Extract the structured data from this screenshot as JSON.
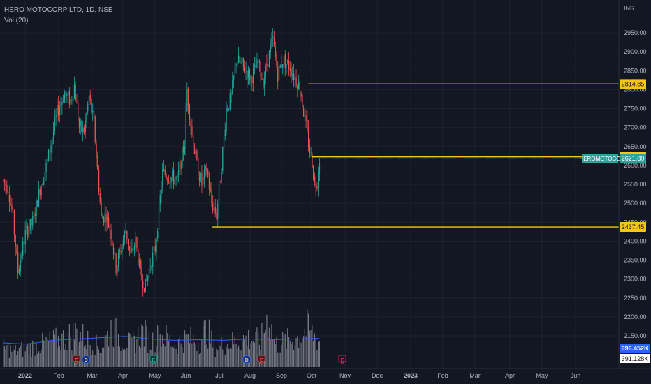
{
  "header": {
    "symbol_title": "HERO MOTOCORP LTD, 1D, NSE",
    "volume_label": "Vol (20)",
    "currency": "INR"
  },
  "colors": {
    "background": "#131722",
    "up": "#26a69a",
    "down": "#ef5350",
    "level_line": "#f5c518",
    "volume_bar": "#9598a1",
    "volume_ma": "#2962ff",
    "grid": "#1e222d"
  },
  "chart_data": {
    "type": "candlestick",
    "ylim": [
      2115,
      2960
    ],
    "y_ticks": [
      "2950.00",
      "2900.00",
      "2850.00",
      "2800.00",
      "2750.00",
      "2700.00",
      "2650.00",
      "2600.00",
      "2550.00",
      "2500.00",
      "2450.00",
      "2400.00",
      "2350.00",
      "2300.00",
      "2250.00",
      "2200.00",
      "2150.00"
    ],
    "x_ticks": [
      "2022",
      "Feb",
      "Mar",
      "Apr",
      "May",
      "Jun",
      "Jul",
      "Aug",
      "Sep",
      "Oct",
      "Nov",
      "Dec",
      "2023",
      "Feb",
      "Mar",
      "Apr",
      "May",
      "Jun"
    ],
    "price_path": [
      [
        0,
        2560
      ],
      [
        4,
        2540
      ],
      [
        8,
        2460
      ],
      [
        12,
        2320
      ],
      [
        18,
        2420
      ],
      [
        24,
        2450
      ],
      [
        30,
        2540
      ],
      [
        36,
        2610
      ],
      [
        44,
        2740
      ],
      [
        50,
        2790
      ],
      [
        55,
        2770
      ],
      [
        58,
        2810
      ],
      [
        62,
        2700
      ],
      [
        66,
        2690
      ],
      [
        70,
        2780
      ],
      [
        74,
        2710
      ],
      [
        80,
        2460
      ],
      [
        84,
        2470
      ],
      [
        88,
        2420
      ],
      [
        92,
        2330
      ],
      [
        96,
        2380
      ],
      [
        100,
        2430
      ],
      [
        104,
        2360
      ],
      [
        108,
        2400
      ],
      [
        112,
        2310
      ],
      [
        116,
        2280
      ],
      [
        120,
        2340
      ],
      [
        124,
        2380
      ],
      [
        130,
        2580
      ],
      [
        136,
        2570
      ],
      [
        142,
        2560
      ],
      [
        148,
        2660
      ],
      [
        150,
        2800
      ],
      [
        154,
        2680
      ],
      [
        158,
        2600
      ],
      [
        162,
        2550
      ],
      [
        166,
        2590
      ],
      [
        170,
        2500
      ],
      [
        174,
        2470
      ],
      [
        178,
        2600
      ],
      [
        182,
        2750
      ],
      [
        186,
        2780
      ],
      [
        190,
        2880
      ],
      [
        196,
        2860
      ],
      [
        202,
        2830
      ],
      [
        208,
        2870
      ],
      [
        212,
        2820
      ],
      [
        216,
        2880
      ],
      [
        220,
        2930
      ],
      [
        224,
        2840
      ],
      [
        228,
        2880
      ],
      [
        234,
        2860
      ],
      [
        238,
        2830
      ],
      [
        242,
        2810
      ],
      [
        246,
        2720
      ],
      [
        250,
        2640
      ],
      [
        252,
        2610
      ],
      [
        254,
        2550
      ],
      [
        256,
        2560
      ],
      [
        258,
        2621.8
      ]
    ],
    "volume_path": [
      [
        0,
        0.3
      ],
      [
        10,
        0.25
      ],
      [
        30,
        0.35
      ],
      [
        50,
        0.45
      ],
      [
        60,
        0.55
      ],
      [
        70,
        0.4
      ],
      [
        80,
        0.3
      ],
      [
        88,
        0.6
      ],
      [
        96,
        0.45
      ],
      [
        104,
        0.35
      ],
      [
        114,
        0.55
      ],
      [
        120,
        0.4
      ],
      [
        130,
        0.5
      ],
      [
        140,
        0.35
      ],
      [
        150,
        0.45
      ],
      [
        160,
        0.4
      ],
      [
        166,
        0.6
      ],
      [
        172,
        0.3
      ],
      [
        180,
        0.35
      ],
      [
        190,
        0.4
      ],
      [
        200,
        0.45
      ],
      [
        210,
        0.4
      ],
      [
        216,
        0.8
      ],
      [
        222,
        0.35
      ],
      [
        230,
        0.4
      ],
      [
        240,
        0.45
      ],
      [
        248,
        0.6
      ],
      [
        258,
        0.4
      ]
    ],
    "volume_ma_path": [
      [
        0,
        0.38
      ],
      [
        20,
        0.36
      ],
      [
        40,
        0.42
      ],
      [
        60,
        0.44
      ],
      [
        80,
        0.46
      ],
      [
        100,
        0.48
      ],
      [
        120,
        0.44
      ],
      [
        140,
        0.42
      ],
      [
        160,
        0.43
      ],
      [
        180,
        0.42
      ],
      [
        200,
        0.44
      ],
      [
        220,
        0.43
      ],
      [
        240,
        0.44
      ],
      [
        258,
        0.45
      ]
    ],
    "levels": [
      {
        "value": 2814.85,
        "label": "2814.85",
        "from_bar": 249
      },
      {
        "value": 2622.55,
        "label": "2622.55",
        "from_bar": 252
      },
      {
        "value": 2437.45,
        "label": "2437.45",
        "from_bar": 171
      }
    ],
    "last_price": {
      "value": 2621.8,
      "label": "2621.80",
      "symbol": "HEROMOTOCO"
    },
    "volume_values": {
      "current": "696.452K",
      "ma": "391.128K"
    },
    "event_markers": [
      {
        "bar": 60,
        "letter": "E",
        "kind": "earnings-red"
      },
      {
        "bar": 68,
        "letter": "D",
        "kind": "dividend-blue"
      },
      {
        "bar": 123,
        "letter": "E",
        "kind": "earnings-green"
      },
      {
        "bar": 199,
        "letter": "D",
        "kind": "dividend-blue"
      },
      {
        "bar": 211,
        "letter": "E",
        "kind": "earnings-red"
      },
      {
        "bar": 277,
        "letter": "E",
        "kind": "earnings-future"
      }
    ]
  }
}
